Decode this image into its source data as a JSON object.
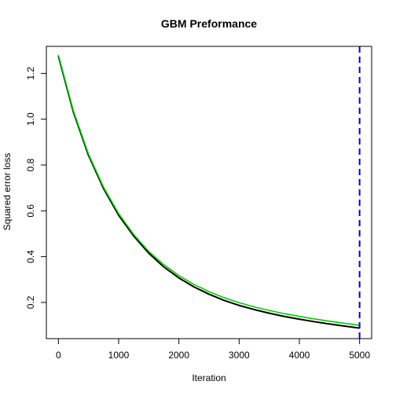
{
  "chart_data": {
    "type": "line",
    "title": "GBM Preformance",
    "xlabel": "Iteration",
    "ylabel": "Squared error loss",
    "xlim": [
      -200,
      5200
    ],
    "ylim": [
      0.042,
      1.318
    ],
    "xticks": [
      0,
      1000,
      2000,
      3000,
      4000,
      5000
    ],
    "yticks": [
      0.2,
      0.4,
      0.6,
      0.8,
      1.0,
      1.2
    ],
    "xtick_labels": [
      "0",
      "1000",
      "2000",
      "3000",
      "4000",
      "5000"
    ],
    "ytick_labels": [
      "0.2",
      "0.4",
      "0.6",
      "0.8",
      "1.0",
      "1.2"
    ],
    "grid": false,
    "series": [
      {
        "color": "#000000",
        "x": [
          0,
          250,
          500,
          750,
          1000,
          1250,
          1500,
          1750,
          2000,
          2250,
          2500,
          2750,
          3000,
          3250,
          3500,
          3750,
          4000,
          4250,
          4500,
          4750,
          5000
        ],
        "y": [
          1.275,
          1.03,
          0.842,
          0.697,
          0.581,
          0.49,
          0.415,
          0.355,
          0.307,
          0.268,
          0.236,
          0.209,
          0.187,
          0.169,
          0.153,
          0.139,
          0.127,
          0.116,
          0.106,
          0.097,
          0.088
        ]
      },
      {
        "color": "#00cc00",
        "x": [
          0,
          250,
          500,
          750,
          1000,
          1250,
          1500,
          1750,
          2000,
          2250,
          2500,
          2750,
          3000,
          3250,
          3500,
          3750,
          4000,
          4250,
          4500,
          4750,
          5000
        ],
        "y": [
          1.28,
          1.036,
          0.848,
          0.703,
          0.588,
          0.497,
          0.423,
          0.365,
          0.317,
          0.279,
          0.247,
          0.221,
          0.199,
          0.181,
          0.165,
          0.151,
          0.139,
          0.128,
          0.118,
          0.109,
          0.1
        ]
      }
    ],
    "vline": {
      "x": 5000,
      "color": "#0000cc",
      "style": "dashed"
    }
  }
}
